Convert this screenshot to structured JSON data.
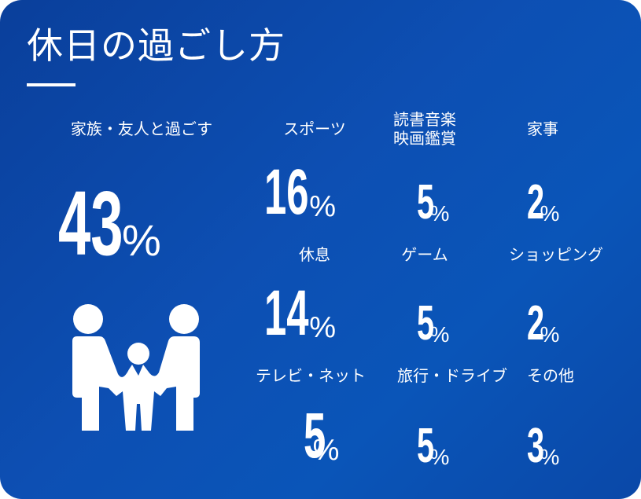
{
  "title": "休日の過ごし方",
  "colors": {
    "background_start": "#0a3f9b",
    "background_end": "#0a55b8",
    "text": "#ffffff"
  },
  "icons": {
    "family": "family-icon"
  },
  "chart_data": {
    "type": "table",
    "title": "休日の過ごし方",
    "unit": "%",
    "items": [
      {
        "label": "家族・友人と過ごす",
        "value": 43
      },
      {
        "label": "スポーツ",
        "value": 16
      },
      {
        "label": "読書音楽\n映画鑑賞",
        "value": 5
      },
      {
        "label": "家事",
        "value": 2
      },
      {
        "label": "休息",
        "value": 14
      },
      {
        "label": "ゲーム",
        "value": 5
      },
      {
        "label": "ショッピング",
        "value": 2
      },
      {
        "label": "テレビ・ネット",
        "value": 5
      },
      {
        "label": "旅行・ドライブ",
        "value": 5
      },
      {
        "label": "その他",
        "value": 3
      }
    ]
  }
}
